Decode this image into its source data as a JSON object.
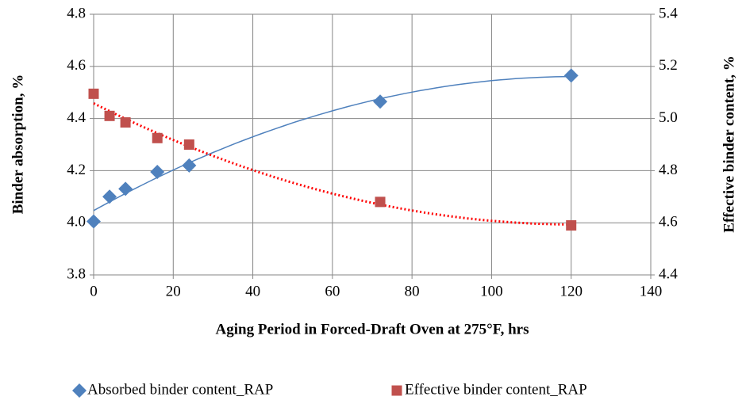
{
  "chart_data": {
    "type": "scatter",
    "x_label": "Aging Period in Forced-Draft Oven at 275°F, hrs",
    "y_label": "Binder absorption, %",
    "y2_label": "Effective binder content, %",
    "x": [
      0,
      4,
      8,
      16,
      24,
      72,
      120
    ],
    "series": [
      {
        "name": "Absorbed binder content_RAP",
        "color": "#4f81bd",
        "marker": "diamond",
        "trendline": true,
        "trendline_style": "solid",
        "values": [
          4.005,
          4.1,
          4.13,
          4.195,
          4.22,
          4.465,
          4.565
        ]
      },
      {
        "name": "Effective binder content_RAP",
        "color": "#c0504d",
        "marker": "square",
        "axis": "y2",
        "trendline": true,
        "trendline_style": "dotted",
        "trendline_color": "#ff0000",
        "values": [
          5.095,
          5.01,
          4.985,
          4.925,
          4.9,
          4.68,
          4.59
        ]
      }
    ],
    "xlim": [
      0,
      140
    ],
    "xticks": [
      0,
      20,
      40,
      60,
      80,
      100,
      120,
      140
    ],
    "ylim": [
      3.8,
      4.8
    ],
    "yticks": [
      {
        "value": 3.8,
        "label": "3.8"
      },
      {
        "value": 4.0,
        "label": "4.0"
      },
      {
        "value": 4.2,
        "label": "4.2"
      },
      {
        "value": 4.4,
        "label": "4.4"
      },
      {
        "value": 4.6,
        "label": "4.6"
      },
      {
        "value": 4.8,
        "label": "4.8"
      }
    ],
    "y2lim": [
      4.4,
      5.4
    ],
    "y2ticks": [
      {
        "value": 4.4,
        "label": "4.4"
      },
      {
        "value": 4.6,
        "label": "4.6"
      },
      {
        "value": 4.8,
        "label": "4.8"
      },
      {
        "value": 5.0,
        "label": "5.0"
      },
      {
        "value": 5.2,
        "label": "5.2"
      },
      {
        "value": 5.4,
        "label": "5.4"
      }
    ],
    "grid": true,
    "legend": "bottom"
  }
}
